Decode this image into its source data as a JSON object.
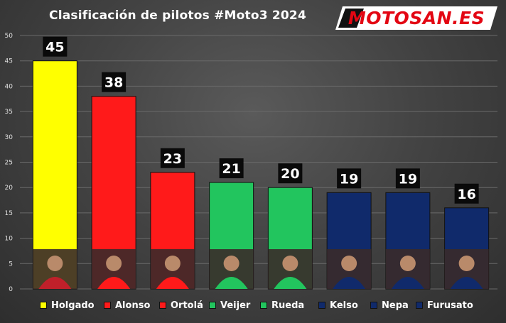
{
  "title": "Clasificación de pilotos #Moto3 2024",
  "logo_text": "MOTOSAN.ES",
  "chart_data": {
    "type": "bar",
    "title": "Clasificación de pilotos #Moto3 2024",
    "xlabel": "",
    "ylabel": "",
    "ylim": [
      0,
      50
    ],
    "yticks": [
      0,
      5,
      10,
      15,
      20,
      25,
      30,
      35,
      40,
      45,
      50
    ],
    "grid": true,
    "legend": "bottom",
    "categories": [
      "Holgado",
      "Alonso",
      "Ortolá",
      "Veijer",
      "Rueda",
      "Kelso",
      "Nepa",
      "Furusato"
    ],
    "values": [
      45,
      38,
      23,
      21,
      20,
      19,
      19,
      16
    ],
    "colors": [
      "#ffff00",
      "#ff1a1a",
      "#ff1a1a",
      "#22c55e",
      "#22c55e",
      "#102a6b",
      "#102a6b",
      "#102a6b"
    ],
    "data_labels": [
      "45",
      "38",
      "23",
      "21",
      "20",
      "19",
      "19",
      "16"
    ]
  }
}
